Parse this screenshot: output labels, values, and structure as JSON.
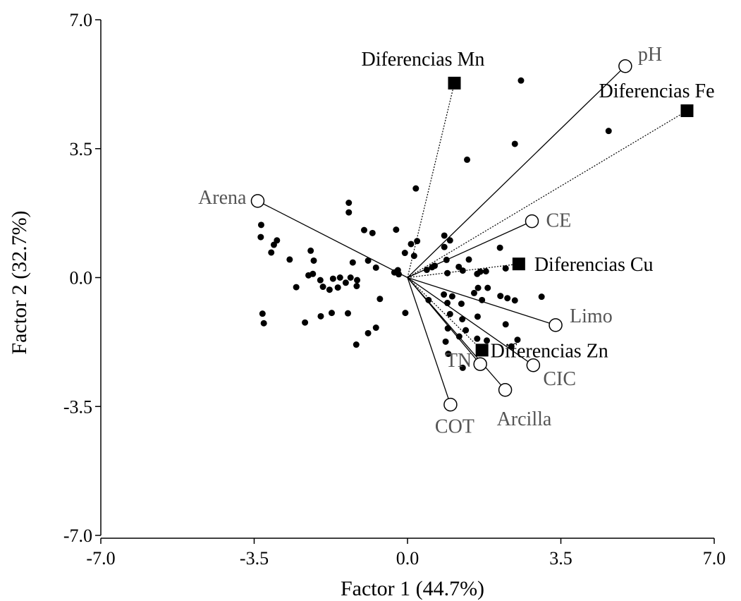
{
  "chart_data": {
    "type": "scatter",
    "xlabel": "Factor 1 (44.7%)",
    "ylabel": "Factor 2 (32.7%)",
    "xlim": [
      -7.0,
      7.0
    ],
    "ylim": [
      -7.0,
      7.0
    ],
    "x_ticks": [
      "-7.0",
      "-3.5",
      "0.0",
      "3.5",
      "7.0"
    ],
    "y_ticks": [
      "7.0",
      "3.5",
      "0.0",
      "-3.5",
      "-7.0"
    ],
    "x_tick_values": [
      -7.0,
      -3.5,
      0.0,
      3.5,
      7.0
    ],
    "y_tick_values": [
      7.0,
      3.5,
      0.0,
      -3.5,
      -7.0
    ],
    "grid": false,
    "variable_vectors": [
      {
        "label": "pH",
        "x": 4.97,
        "y": 5.74
      },
      {
        "label": "CE",
        "x": 2.84,
        "y": 1.53
      },
      {
        "label": "Arena",
        "x": -3.42,
        "y": 2.08
      },
      {
        "label": "Limo",
        "x": 3.38,
        "y": -1.29
      },
      {
        "label": "CIC",
        "x": 2.87,
        "y": -2.38
      },
      {
        "label": "TN",
        "x": 1.66,
        "y": -2.35
      },
      {
        "label": "Arcilla",
        "x": 2.23,
        "y": -3.05
      },
      {
        "label": "COT",
        "x": 0.98,
        "y": -3.45
      }
    ],
    "supplementary_points": [
      {
        "label": "Diferencias Mn",
        "x": 1.07,
        "y": 5.28
      },
      {
        "label": "Diferencias Fe",
        "x": 6.38,
        "y": 4.53
      },
      {
        "label": "Diferencias Cu",
        "x": 2.54,
        "y": 0.37
      },
      {
        "label": "Diferencias Zn",
        "x": 1.7,
        "y": -1.97
      }
    ],
    "observations": [
      [
        2.59,
        5.35
      ],
      [
        2.45,
        3.63
      ],
      [
        1.36,
        3.2
      ],
      [
        0.19,
        2.42
      ],
      [
        4.59,
        3.98
      ],
      [
        -1.34,
        2.03
      ],
      [
        -1.34,
        1.77
      ],
      [
        -3.34,
        1.43
      ],
      [
        -0.99,
        1.29
      ],
      [
        -0.8,
        1.21
      ],
      [
        -0.26,
        1.3
      ],
      [
        0.22,
        0.99
      ],
      [
        0.08,
        0.91
      ],
      [
        -0.06,
        0.67
      ],
      [
        0.15,
        0.59
      ],
      [
        -3.35,
        1.1
      ],
      [
        -3.05,
        0.89
      ],
      [
        -2.98,
        1.01
      ],
      [
        -3.11,
        0.68
      ],
      [
        -2.21,
        0.73
      ],
      [
        -2.69,
        0.49
      ],
      [
        -2.14,
        0.46
      ],
      [
        -1.25,
        0.41
      ],
      [
        -0.9,
        0.46
      ],
      [
        -0.72,
        0.27
      ],
      [
        -2.16,
        0.1
      ],
      [
        -2.26,
        0.06
      ],
      [
        -1.99,
        -0.07
      ],
      [
        -1.7,
        -0.03
      ],
      [
        -1.3,
        0.0
      ],
      [
        -1.54,
        0.0
      ],
      [
        -1.41,
        -0.14
      ],
      [
        -1.15,
        -0.07
      ],
      [
        -2.54,
        -0.26
      ],
      [
        -1.93,
        -0.25
      ],
      [
        -1.78,
        -0.33
      ],
      [
        -1.59,
        -0.27
      ],
      [
        -1.16,
        -0.23
      ],
      [
        -0.3,
        0.14
      ],
      [
        -0.22,
        0.2
      ],
      [
        -0.2,
        0.09
      ],
      [
        0.84,
        1.14
      ],
      [
        0.97,
        1.01
      ],
      [
        0.84,
        0.83
      ],
      [
        0.62,
        0.32
      ],
      [
        0.89,
        0.48
      ],
      [
        1.17,
        0.29
      ],
      [
        1.4,
        0.49
      ],
      [
        2.11,
        0.81
      ],
      [
        2.24,
        0.25
      ],
      [
        1.59,
        0.1
      ],
      [
        1.66,
        0.16
      ],
      [
        1.79,
        0.17
      ],
      [
        0.56,
        0.28
      ],
      [
        0.44,
        0.21
      ],
      [
        0.91,
        0.12
      ],
      [
        1.26,
        0.19
      ],
      [
        1.61,
        -0.28
      ],
      [
        1.83,
        -0.28
      ],
      [
        1.52,
        -0.42
      ],
      [
        1.7,
        -0.61
      ],
      [
        2.28,
        -0.56
      ],
      [
        2.12,
        -0.5
      ],
      [
        2.45,
        -0.62
      ],
      [
        3.06,
        -0.52
      ],
      [
        0.48,
        -0.61
      ],
      [
        0.83,
        -0.46
      ],
      [
        1.02,
        -0.51
      ],
      [
        0.91,
        -0.69
      ],
      [
        1.23,
        -0.71
      ],
      [
        0.97,
        -0.99
      ],
      [
        1.25,
        -1.13
      ],
      [
        1.6,
        -1.06
      ],
      [
        2.24,
        -1.27
      ],
      [
        2.51,
        -1.69
      ],
      [
        1.33,
        -1.43
      ],
      [
        1.18,
        -1.6
      ],
      [
        0.92,
        -1.38
      ],
      [
        0.87,
        -1.74
      ],
      [
        0.93,
        -2.07
      ],
      [
        1.59,
        -1.66
      ],
      [
        1.81,
        -1.71
      ],
      [
        2.37,
        -1.87
      ],
      [
        -0.72,
        -1.36
      ],
      [
        -0.9,
        -1.51
      ],
      [
        -1.17,
        -1.82
      ],
      [
        -0.05,
        -0.96
      ],
      [
        -0.63,
        -0.58
      ],
      [
        -1.36,
        -0.97
      ],
      [
        -1.73,
        -0.96
      ],
      [
        -1.98,
        -1.05
      ],
      [
        -2.34,
        -1.22
      ],
      [
        -3.31,
        -0.98
      ],
      [
        -3.28,
        -1.24
      ],
      [
        1.26,
        -2.45
      ]
    ]
  }
}
